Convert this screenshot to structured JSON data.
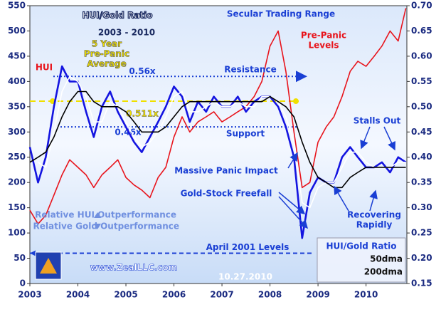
{
  "chart_data": {
    "type": "line",
    "title": "HUI/Gold Ratio",
    "subtitle": "2003 - 2010",
    "x": [
      2003,
      2003.17,
      2003.33,
      2003.5,
      2003.67,
      2003.83,
      2004,
      2004.17,
      2004.33,
      2004.5,
      2004.67,
      2004.83,
      2005,
      2005.17,
      2005.33,
      2005.5,
      2005.67,
      2005.83,
      2006,
      2006.17,
      2006.33,
      2006.5,
      2006.67,
      2006.83,
      2007,
      2007.17,
      2007.33,
      2007.5,
      2007.67,
      2007.83,
      2008,
      2008.17,
      2008.33,
      2008.5,
      2008.67,
      2008.83,
      2009,
      2009.17,
      2009.33,
      2009.5,
      2009.67,
      2009.83,
      2010,
      2010.17,
      2010.33,
      2010.5,
      2010.67,
      2010.83
    ],
    "xlim": [
      2003,
      2010.85
    ],
    "xticks": [
      2003,
      2004,
      2005,
      2006,
      2007,
      2008,
      2009,
      2010
    ],
    "ylim": [
      0,
      550
    ],
    "yticks": [
      0,
      50,
      100,
      150,
      200,
      250,
      300,
      350,
      400,
      450,
      500,
      550
    ],
    "y2lim": [
      0.15,
      0.7
    ],
    "y2ticks": [
      0.15,
      {
        "value": 0.2,
        "label": "0.20"
      },
      0.25,
      {
        "value": 0.3,
        "label": "0.30"
      },
      0.35,
      {
        "value": 0.4,
        "label": "0.40"
      },
      0.45,
      {
        "value": 0.5,
        "label": "0.50"
      },
      0.55,
      {
        "value": 0.6,
        "label": "0.60"
      },
      0.65,
      {
        "value": 0.7,
        "label": "0.70"
      }
    ],
    "series": [
      {
        "name": "HUI",
        "color": "#e8141c",
        "values": [
          145,
          118,
          135,
          175,
          215,
          245,
          230,
          215,
          190,
          215,
          230,
          245,
          210,
          195,
          185,
          170,
          210,
          230,
          290,
          330,
          300,
          320,
          330,
          340,
          320,
          330,
          340,
          350,
          370,
          400,
          470,
          500,
          420,
          300,
          190,
          200,
          280,
          310,
          330,
          370,
          420,
          440,
          430,
          450,
          470,
          500,
          480,
          545
        ]
      },
      {
        "name": "HUI/Gold Ratio",
        "color": "#1414e0",
        "axis": "y2",
        "values": [
          0.42,
          0.35,
          0.4,
          0.5,
          0.58,
          0.55,
          0.55,
          0.49,
          0.44,
          0.5,
          0.53,
          0.49,
          0.46,
          0.43,
          0.41,
          0.44,
          0.47,
          0.5,
          0.54,
          0.52,
          0.47,
          0.51,
          0.49,
          0.52,
          0.5,
          0.5,
          0.52,
          0.49,
          0.51,
          0.52,
          0.52,
          0.5,
          0.46,
          0.4,
          0.24,
          0.33,
          0.36,
          0.35,
          0.35,
          0.4,
          0.42,
          0.4,
          0.38,
          0.38,
          0.39,
          0.37,
          0.4,
          0.39
        ]
      },
      {
        "name": "50dma",
        "color": "#ffffff",
        "axis": "y2",
        "values": [
          null,
          0.39,
          0.38,
          0.45,
          0.53,
          0.56,
          0.55,
          0.52,
          0.47,
          0.47,
          0.51,
          0.5,
          0.47,
          0.44,
          0.42,
          0.43,
          0.45,
          0.48,
          0.52,
          0.53,
          0.49,
          0.49,
          0.5,
          0.51,
          0.5,
          0.5,
          0.51,
          0.5,
          0.5,
          0.52,
          0.52,
          0.51,
          0.48,
          0.43,
          0.31,
          0.3,
          0.34,
          0.35,
          0.35,
          0.38,
          0.41,
          0.41,
          0.39,
          0.38,
          0.38,
          0.38,
          0.39,
          0.39
        ]
      },
      {
        "name": "200dma",
        "color": "#000000",
        "axis": "y2",
        "values": [
          0.39,
          0.4,
          0.41,
          0.44,
          0.48,
          0.51,
          0.53,
          0.53,
          0.51,
          0.5,
          0.5,
          0.5,
          0.49,
          0.47,
          0.45,
          0.45,
          0.45,
          0.46,
          0.48,
          0.5,
          0.51,
          0.51,
          0.51,
          0.51,
          0.51,
          0.51,
          0.51,
          0.51,
          0.51,
          0.51,
          0.52,
          0.51,
          0.5,
          0.48,
          0.43,
          0.39,
          0.36,
          0.35,
          0.34,
          0.34,
          0.36,
          0.37,
          0.38,
          0.38,
          0.38,
          0.38,
          0.38,
          0.38
        ]
      }
    ],
    "reference_lines": [
      {
        "value": 0.56,
        "label": "0.56x",
        "color": "#1a3fd4"
      },
      {
        "value": 0.511,
        "label": "0.511x",
        "color": "#f0e000"
      },
      {
        "value": 0.46,
        "label": "0.46x",
        "color": "#1a3fd4"
      },
      {
        "value": 0.21,
        "label": "April 2001 Levels",
        "color": "#1a3fd4"
      }
    ],
    "annotations": [
      [
        "Secular Trading Range"
      ],
      [
        "Pre-Panic",
        "Levels"
      ],
      [
        "5 Year",
        "Pre-Panic",
        "Average"
      ],
      [
        "Resistance"
      ],
      [
        "Support"
      ],
      [
        "Stalls Out"
      ],
      [
        "Massive Panic Impact"
      ],
      [
        "Gold-Stock Freefall"
      ],
      [
        "Recovering",
        "Rapidly"
      ],
      [
        "Relative HUI Outperformance"
      ],
      [
        "Relative Gold Outperformance"
      ],
      [
        "www.ZealLLC.com"
      ],
      [
        "10.27.2010"
      ]
    ]
  }
}
